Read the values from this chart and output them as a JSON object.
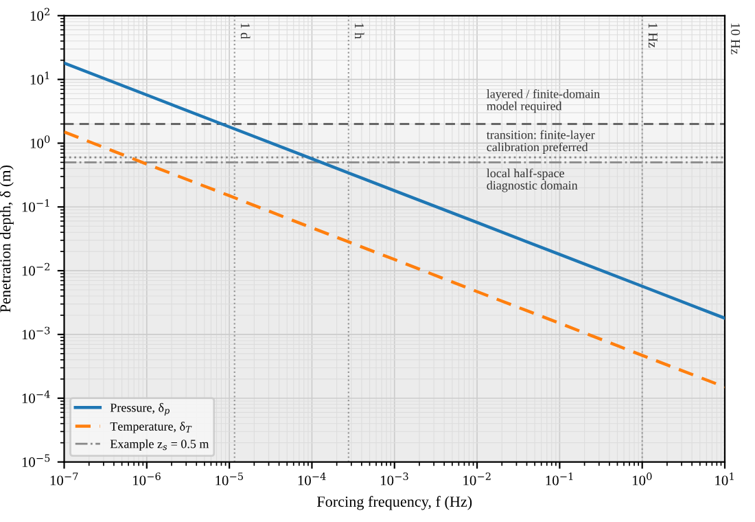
{
  "chart_data": {
    "type": "line",
    "xlabel": "Forcing frequency, f (Hz)",
    "ylabel": "Penetration depth, δ (m)",
    "log": "xy",
    "xlim": [
      1e-07,
      10
    ],
    "ylim": [
      1e-05,
      100
    ],
    "xticks": [
      {
        "value": 1e-07,
        "label": "10$^{−7}$"
      },
      {
        "value": 1e-06,
        "label": "10$^{−6}$"
      },
      {
        "value": 1e-05,
        "label": "10$^{−5}$"
      },
      {
        "value": 0.0001,
        "label": "10$^{−4}$"
      },
      {
        "value": 0.001,
        "label": "10$^{−3}$"
      },
      {
        "value": 0.01,
        "label": "10$^{−2}$"
      },
      {
        "value": 0.1,
        "label": "10$^{−1}$"
      },
      {
        "value": 1,
        "label": "10$^{0}$"
      },
      {
        "value": 10,
        "label": "10$^{1}$"
      }
    ],
    "yticks": [
      {
        "value": 1e-05,
        "label": "10$^{−5}$"
      },
      {
        "value": 0.0001,
        "label": "10$^{−4}$"
      },
      {
        "value": 0.001,
        "label": "10$^{−3}$"
      },
      {
        "value": 0.01,
        "label": "10$^{−2}$"
      },
      {
        "value": 0.1,
        "label": "10$^{−1}$"
      },
      {
        "value": 1,
        "label": "10$^{0}$"
      },
      {
        "value": 10,
        "label": "10$^{1}$"
      },
      {
        "value": 100,
        "label": "10$^{2}$"
      }
    ],
    "grid": true,
    "legend": "bottom left",
    "series": [
      {
        "name": "Pressure, δ$_{p}$",
        "color": "#1f77b4",
        "line_style": "solid",
        "x": [
          1e-07,
          1e-06,
          1e-05,
          0.0001,
          0.001,
          0.01,
          0.1,
          1,
          10
        ],
        "values": [
          18,
          5.7,
          1.8,
          0.57,
          0.18,
          0.057,
          0.018,
          0.0057,
          0.0018
        ]
      },
      {
        "name": "Temperature, δ$_{T}$",
        "color": "#ff7f0e",
        "line_style": "dashed",
        "x": [
          1e-07,
          1e-06,
          1e-05,
          0.0001,
          0.001,
          0.01,
          0.1,
          1,
          10
        ],
        "values": [
          1.5,
          0.47,
          0.15,
          0.047,
          0.015,
          0.0047,
          0.0015,
          0.00047,
          0.00015
        ]
      }
    ],
    "bands": [
      {
        "axis": "y",
        "from": 2,
        "to": 100,
        "label": "layered / finite-domain\nmodel required",
        "color": "#f8f8f8"
      },
      {
        "axis": "y",
        "from": 0.5,
        "to": 2,
        "label": "transition: finite-layer\ncalibration preferred",
        "color": "#f3f3f3"
      },
      {
        "axis": "y",
        "from": 1e-05,
        "to": 0.5,
        "label": "local half-space\ndiagnostic domain",
        "color": "#ececec"
      }
    ],
    "ref_lines": [
      {
        "axis": "y",
        "value": 2,
        "line_style": "dashed",
        "color": "#666666"
      },
      {
        "axis": "y",
        "value": 0.6,
        "line_style": "dotted",
        "color": "#888888"
      },
      {
        "axis": "y",
        "value": 0.5,
        "line_style": "dashdot",
        "color": "#888888",
        "label": "Example z$_{s}$ = 0.5 m"
      },
      {
        "axis": "x",
        "value": 1.157e-05,
        "line_style": "dotted",
        "color": "#999999",
        "label": "1 d"
      },
      {
        "axis": "x",
        "value": 0.0002778,
        "line_style": "dotted",
        "color": "#999999",
        "label": "1 h"
      },
      {
        "axis": "x",
        "value": 1,
        "line_style": "dotted",
        "color": "#999999",
        "label": "1 Hz"
      },
      {
        "axis": "x",
        "value": 10,
        "line_style": "dotted",
        "color": "#999999",
        "label": "10 Hz"
      }
    ]
  }
}
